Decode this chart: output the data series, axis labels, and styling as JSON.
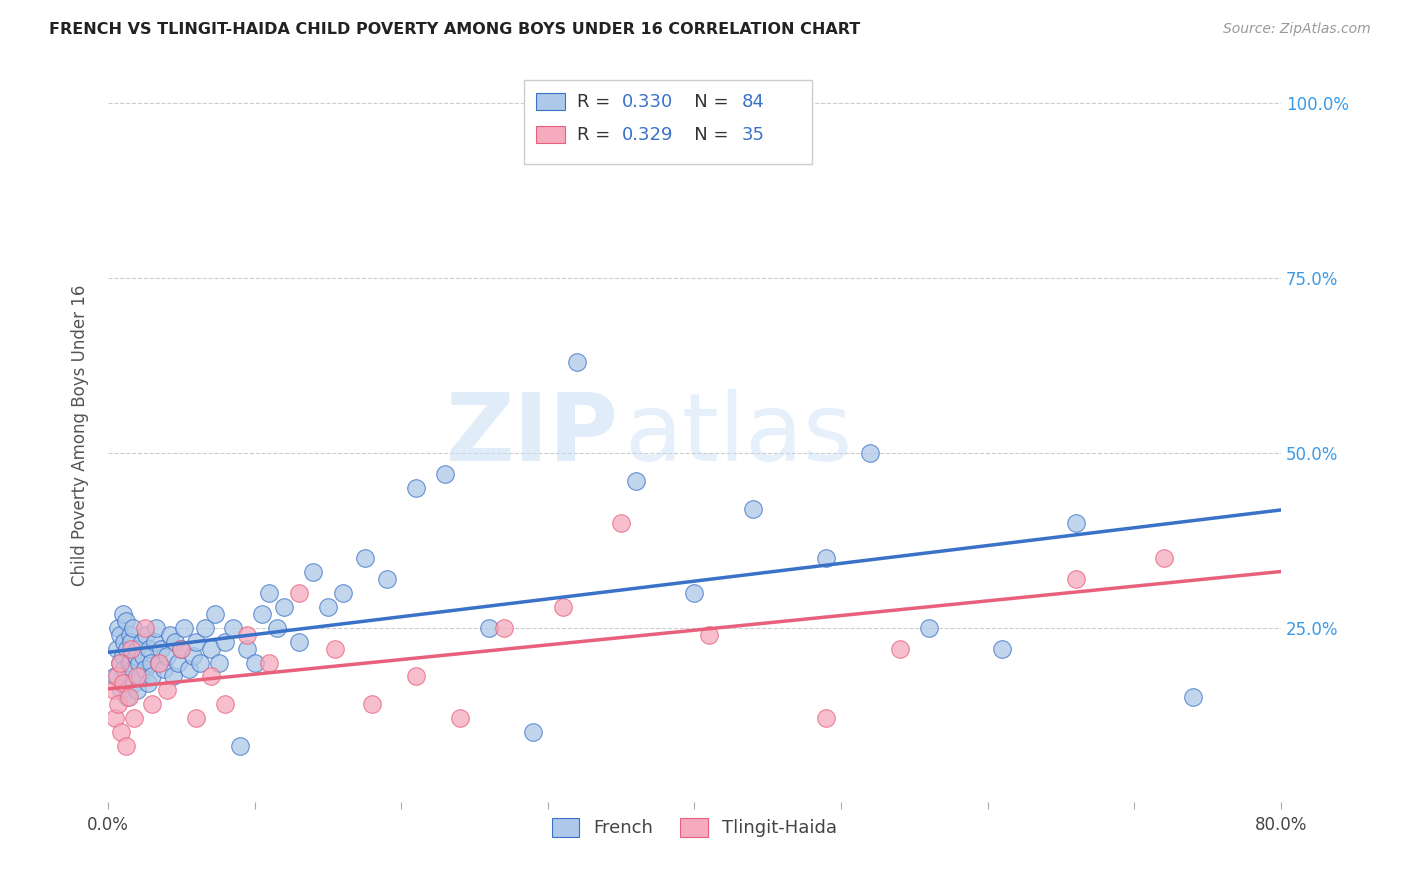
{
  "title": "FRENCH VS TLINGIT-HAIDA CHILD POVERTY AMONG BOYS UNDER 16 CORRELATION CHART",
  "source": "Source: ZipAtlas.com",
  "ylabel": "Child Poverty Among Boys Under 16",
  "xlim": [
    0.0,
    0.8
  ],
  "ylim": [
    0.0,
    1.05
  ],
  "xtick_positions": [
    0.0,
    0.1,
    0.2,
    0.3,
    0.4,
    0.5,
    0.6,
    0.7,
    0.8
  ],
  "xticklabels": [
    "0.0%",
    "",
    "",
    "",
    "",
    "",
    "",
    "",
    "80.0%"
  ],
  "ytick_positions": [
    0.0,
    0.25,
    0.5,
    0.75,
    1.0
  ],
  "yticklabels_right": [
    "",
    "25.0%",
    "50.0%",
    "75.0%",
    "100.0%"
  ],
  "french_R": 0.33,
  "french_N": 84,
  "tlingit_R": 0.329,
  "tlingit_N": 35,
  "french_color": "#adc8e8",
  "tlingit_color": "#f5aabe",
  "french_line_color": "#3a72c8",
  "tlingit_line_color": "#e8607a",
  "legend_label1": "French",
  "legend_label2": "Tlingit-Haida",
  "legend_value_color": "#3a72c8",
  "watermark_zip": "ZIP",
  "watermark_atlas": "atlas",
  "french_x": [
    0.005,
    0.006,
    0.007,
    0.008,
    0.008,
    0.009,
    0.01,
    0.01,
    0.011,
    0.011,
    0.012,
    0.012,
    0.013,
    0.013,
    0.014,
    0.015,
    0.015,
    0.016,
    0.016,
    0.017,
    0.017,
    0.018,
    0.019,
    0.02,
    0.02,
    0.021,
    0.022,
    0.023,
    0.024,
    0.025,
    0.026,
    0.027,
    0.028,
    0.029,
    0.03,
    0.032,
    0.033,
    0.035,
    0.036,
    0.038,
    0.04,
    0.042,
    0.044,
    0.046,
    0.048,
    0.05,
    0.052,
    0.055,
    0.058,
    0.06,
    0.063,
    0.066,
    0.07,
    0.073,
    0.076,
    0.08,
    0.085,
    0.09,
    0.095,
    0.1,
    0.105,
    0.11,
    0.115,
    0.12,
    0.13,
    0.14,
    0.15,
    0.16,
    0.175,
    0.19,
    0.21,
    0.23,
    0.26,
    0.29,
    0.32,
    0.36,
    0.4,
    0.44,
    0.49,
    0.52,
    0.56,
    0.61,
    0.66,
    0.74
  ],
  "french_y": [
    0.18,
    0.22,
    0.25,
    0.2,
    0.24,
    0.16,
    0.21,
    0.27,
    0.19,
    0.23,
    0.17,
    0.26,
    0.15,
    0.22,
    0.2,
    0.18,
    0.24,
    0.2,
    0.23,
    0.19,
    0.25,
    0.17,
    0.21,
    0.16,
    0.22,
    0.2,
    0.18,
    0.23,
    0.21,
    0.19,
    0.24,
    0.17,
    0.22,
    0.2,
    0.18,
    0.23,
    0.25,
    0.2,
    0.22,
    0.19,
    0.21,
    0.24,
    0.18,
    0.23,
    0.2,
    0.22,
    0.25,
    0.19,
    0.21,
    0.23,
    0.2,
    0.25,
    0.22,
    0.27,
    0.2,
    0.23,
    0.25,
    0.08,
    0.22,
    0.2,
    0.27,
    0.3,
    0.25,
    0.28,
    0.23,
    0.33,
    0.28,
    0.3,
    0.35,
    0.32,
    0.45,
    0.47,
    0.25,
    0.1,
    0.63,
    0.46,
    0.3,
    0.42,
    0.35,
    0.5,
    0.25,
    0.22,
    0.4,
    0.15
  ],
  "tlingit_x": [
    0.004,
    0.005,
    0.006,
    0.007,
    0.008,
    0.009,
    0.01,
    0.012,
    0.014,
    0.016,
    0.018,
    0.02,
    0.025,
    0.03,
    0.035,
    0.04,
    0.05,
    0.06,
    0.07,
    0.08,
    0.095,
    0.11,
    0.13,
    0.155,
    0.18,
    0.21,
    0.24,
    0.27,
    0.31,
    0.35,
    0.41,
    0.49,
    0.54,
    0.66,
    0.72
  ],
  "tlingit_y": [
    0.16,
    0.12,
    0.18,
    0.14,
    0.2,
    0.1,
    0.17,
    0.08,
    0.15,
    0.22,
    0.12,
    0.18,
    0.25,
    0.14,
    0.2,
    0.16,
    0.22,
    0.12,
    0.18,
    0.14,
    0.24,
    0.2,
    0.3,
    0.22,
    0.14,
    0.18,
    0.12,
    0.25,
    0.28,
    0.4,
    0.24,
    0.12,
    0.22,
    0.32,
    0.35
  ]
}
